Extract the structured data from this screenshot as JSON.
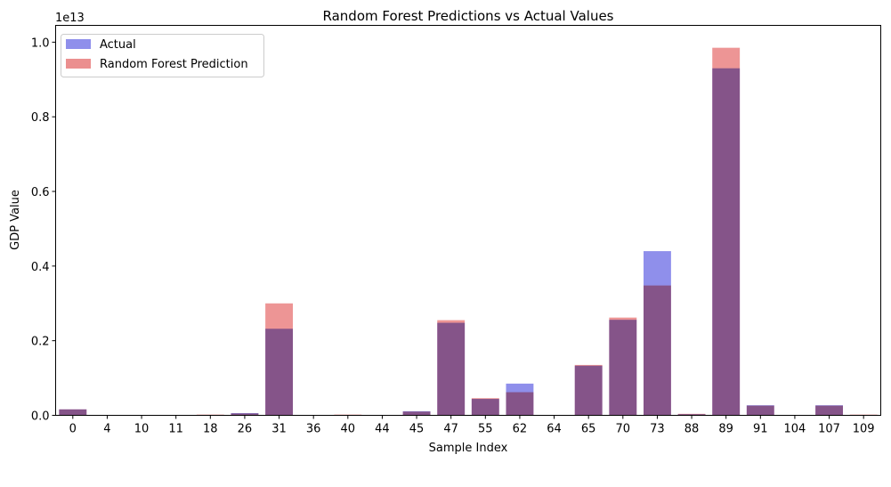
{
  "chart_data": {
    "type": "bar",
    "title": "Random Forest Predictions vs Actual Values",
    "xlabel": "Sample Index",
    "ylabel": "GDP Value",
    "offset_label": "1e13",
    "categories": [
      "0",
      "4",
      "10",
      "11",
      "18",
      "26",
      "31",
      "36",
      "40",
      "44",
      "45",
      "47",
      "55",
      "62",
      "64",
      "65",
      "70",
      "73",
      "88",
      "89",
      "91",
      "104",
      "107",
      "109"
    ],
    "ylim": [
      0,
      1.0
    ],
    "y_ticks": [
      "0.0",
      "0.2",
      "0.4",
      "0.6",
      "0.8",
      "1.0"
    ],
    "y_tick_values": [
      0.0,
      0.2,
      0.4,
      0.6,
      0.8,
      1.0
    ],
    "grid": false,
    "legend_position": "top-left",
    "series": [
      {
        "name": "Actual",
        "color": "#7b7be8",
        "values": [
          0.016,
          0.0,
          0.0,
          0.0,
          0.001,
          0.006,
          0.232,
          0.0,
          0.001,
          0.0,
          0.011,
          0.248,
          0.044,
          0.085,
          0.0,
          0.133,
          0.256,
          0.44,
          0.003,
          0.93,
          0.027,
          0.0,
          0.027,
          0.001
        ]
      },
      {
        "name": "Random Forest Prediction",
        "color": "#e87b7b",
        "values": [
          0.016,
          0.0,
          0.0,
          0.0,
          0.002,
          0.005,
          0.3,
          0.0,
          0.002,
          0.0,
          0.01,
          0.255,
          0.046,
          0.062,
          0.0,
          0.135,
          0.262,
          0.348,
          0.004,
          0.985,
          0.026,
          0.0,
          0.026,
          0.002
        ]
      }
    ]
  }
}
